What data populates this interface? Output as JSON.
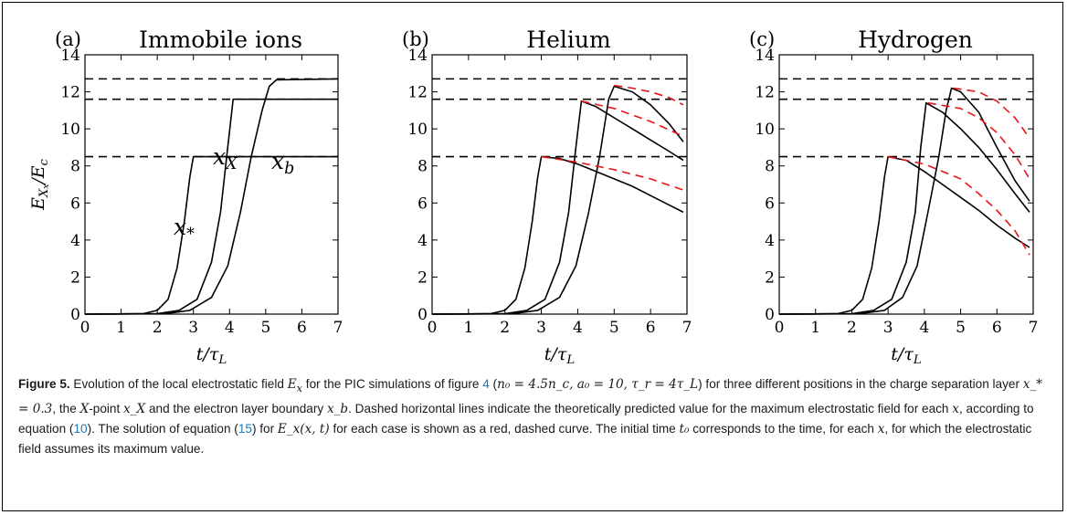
{
  "figure": {
    "ylabel": "E_{X_x}/E_c",
    "xlabel": "t/τ_L",
    "annotations": [
      "x_X",
      "x_b",
      "x_*"
    ]
  },
  "chart_data": [
    {
      "type": "line",
      "panel_label": "(a)",
      "title": "Immobile ions",
      "xlim": [
        0,
        7
      ],
      "ylim": [
        0,
        14
      ],
      "xticks": [
        0,
        1,
        2,
        3,
        4,
        5,
        6,
        7
      ],
      "yticks": [
        0,
        2,
        4,
        6,
        8,
        10,
        12,
        14
      ],
      "xlabel": "t/τ_L",
      "ylabel": "E_{X_x}/E_c",
      "dashed_levels": [
        8.5,
        11.6,
        12.7
      ],
      "series": [
        {
          "style": "solid-black",
          "x": [
            0,
            1.6,
            2.0,
            2.3,
            2.55,
            2.75,
            2.9,
            3.0,
            7
          ],
          "y": [
            0,
            0.02,
            0.2,
            0.8,
            2.5,
            5.0,
            7.4,
            8.5,
            8.5
          ]
        },
        {
          "style": "solid-black",
          "x": [
            0,
            2.0,
            2.6,
            3.1,
            3.5,
            3.75,
            3.95,
            4.1,
            7
          ],
          "y": [
            0,
            0.02,
            0.2,
            0.8,
            2.8,
            5.5,
            9.0,
            11.6,
            11.6
          ]
        },
        {
          "style": "solid-black",
          "x": [
            0,
            2.2,
            2.9,
            3.5,
            3.95,
            4.3,
            4.6,
            4.9,
            5.1,
            5.3,
            7
          ],
          "y": [
            0,
            0.02,
            0.2,
            0.9,
            2.6,
            5.5,
            8.5,
            11.0,
            12.3,
            12.65,
            12.7
          ]
        }
      ]
    },
    {
      "type": "line",
      "panel_label": "(b)",
      "title": "Helium",
      "xlim": [
        0,
        7
      ],
      "ylim": [
        0,
        14
      ],
      "xticks": [
        0,
        1,
        2,
        3,
        4,
        5,
        6,
        7
      ],
      "yticks": [
        0,
        2,
        4,
        6,
        8,
        10,
        12,
        14
      ],
      "xlabel": "t/τ_L",
      "ylabel": "",
      "dashed_levels": [
        8.5,
        11.6,
        12.7
      ],
      "series": [
        {
          "style": "solid-black",
          "x": [
            0,
            1.6,
            2.0,
            2.3,
            2.55,
            2.75,
            2.9,
            3.0,
            3.5,
            4.0,
            4.5,
            5.0,
            5.5,
            6.0,
            6.5,
            6.9
          ],
          "y": [
            0,
            0.02,
            0.2,
            0.8,
            2.5,
            5.0,
            7.4,
            8.5,
            8.4,
            8.1,
            7.7,
            7.3,
            6.9,
            6.4,
            5.9,
            5.5
          ]
        },
        {
          "style": "solid-black",
          "x": [
            0,
            2.0,
            2.6,
            3.1,
            3.5,
            3.75,
            3.95,
            4.1,
            4.5,
            5.0,
            5.5,
            6.0,
            6.5,
            6.9
          ],
          "y": [
            0,
            0.02,
            0.2,
            0.8,
            2.8,
            5.5,
            9.0,
            11.5,
            11.2,
            10.6,
            10.0,
            9.4,
            8.8,
            8.3
          ]
        },
        {
          "style": "solid-black",
          "x": [
            0,
            2.2,
            2.9,
            3.5,
            3.95,
            4.3,
            4.6,
            4.85,
            5.0,
            5.5,
            6.0,
            6.5,
            6.9
          ],
          "y": [
            0,
            0.02,
            0.2,
            0.9,
            2.6,
            5.5,
            8.5,
            11.6,
            12.3,
            12.0,
            11.3,
            10.3,
            9.3
          ]
        },
        {
          "style": "dashed-red",
          "x": [
            3.0,
            4.0,
            5.0,
            6.0,
            6.9
          ],
          "y": [
            8.5,
            8.2,
            7.8,
            7.3,
            6.7
          ]
        },
        {
          "style": "dashed-red",
          "x": [
            4.1,
            5.0,
            6.0,
            6.9
          ],
          "y": [
            11.5,
            11.1,
            10.4,
            9.6
          ]
        },
        {
          "style": "dashed-red",
          "x": [
            5.0,
            5.5,
            6.0,
            6.5,
            6.9
          ],
          "y": [
            12.35,
            12.2,
            12.0,
            11.7,
            11.3
          ]
        }
      ]
    },
    {
      "type": "line",
      "panel_label": "(c)",
      "title": "Hydrogen",
      "xlim": [
        0,
        7
      ],
      "ylim": [
        0,
        14
      ],
      "xticks": [
        0,
        1,
        2,
        3,
        4,
        5,
        6,
        7
      ],
      "yticks": [
        0,
        2,
        4,
        6,
        8,
        10,
        12,
        14
      ],
      "xlabel": "t/τ_L",
      "ylabel": "",
      "dashed_levels": [
        8.5,
        11.6,
        12.7
      ],
      "series": [
        {
          "style": "solid-black",
          "x": [
            0,
            1.6,
            2.0,
            2.3,
            2.55,
            2.75,
            2.9,
            3.0,
            3.5,
            4.0,
            4.5,
            5.0,
            5.5,
            6.0,
            6.5,
            6.9
          ],
          "y": [
            0,
            0.02,
            0.2,
            0.8,
            2.5,
            5.0,
            7.4,
            8.5,
            8.3,
            7.7,
            7.0,
            6.3,
            5.6,
            4.8,
            4.1,
            3.6
          ]
        },
        {
          "style": "solid-black",
          "x": [
            0,
            2.0,
            2.6,
            3.1,
            3.5,
            3.75,
            3.9,
            4.05,
            4.5,
            5.0,
            5.5,
            6.0,
            6.5,
            6.9
          ],
          "y": [
            0,
            0.02,
            0.2,
            0.8,
            2.8,
            5.5,
            9.0,
            11.4,
            10.9,
            10.0,
            9.0,
            7.8,
            6.5,
            5.5
          ]
        },
        {
          "style": "solid-black",
          "x": [
            0,
            2.2,
            2.9,
            3.4,
            3.8,
            4.1,
            4.4,
            4.6,
            4.75,
            5.0,
            5.5,
            6.0,
            6.5,
            6.9
          ],
          "y": [
            0,
            0.02,
            0.2,
            0.9,
            2.6,
            5.5,
            8.5,
            11.0,
            12.2,
            12.0,
            10.9,
            9.0,
            7.2,
            6.1
          ]
        },
        {
          "style": "dashed-red",
          "x": [
            3.0,
            4.0,
            5.0,
            5.5,
            6.0,
            6.5,
            6.9
          ],
          "y": [
            8.5,
            8.1,
            7.3,
            6.5,
            5.6,
            4.5,
            3.2
          ]
        },
        {
          "style": "dashed-red",
          "x": [
            4.1,
            5.0,
            5.5,
            6.0,
            6.5,
            6.9
          ],
          "y": [
            11.4,
            11.1,
            10.6,
            9.8,
            8.6,
            7.3
          ]
        },
        {
          "style": "dashed-red",
          "x": [
            4.8,
            5.5,
            6.0,
            6.5,
            6.9
          ],
          "y": [
            12.2,
            12.0,
            11.5,
            10.6,
            9.5
          ]
        }
      ]
    }
  ],
  "caption": {
    "label": "Figure 5.",
    "text_1": " Evolution of the local electrostatic field ",
    "math_1": "E",
    "math_1_sub": "x",
    "text_2": " for the PIC simulations of figure ",
    "ref_fig": "4",
    "text_3": " (",
    "params": "n₀ = 4.5n_c, a₀ = 10, τ_r = 4τ_L",
    "text_4": ") for three different positions in the charge separation layer ",
    "pos1": "x_* = 0.3",
    "text_5": ", the ",
    "xpoint": "X",
    "text_6": "-point ",
    "pos2": "x_X",
    "text_7": " and the electron layer boundary ",
    "pos3": "x_b",
    "text_8": ". Dashed horizontal lines indicate the theoretically predicted value for the maximum electrostatic field for each ",
    "xvar": "x",
    "text_9": ", according to equation (",
    "ref_eq1": "10",
    "text_10": "). The solution of equation (",
    "ref_eq2": "15",
    "text_11": ") for ",
    "exxt": "E_x(x, t)",
    "text_12": " for each case is shown as a red, dashed curve. The initial time ",
    "t0": "t₀",
    "text_13": " corresponds to the time, for each ",
    "xvar2": "x",
    "text_14": ", for which the electrostatic field assumes its maximum value."
  }
}
